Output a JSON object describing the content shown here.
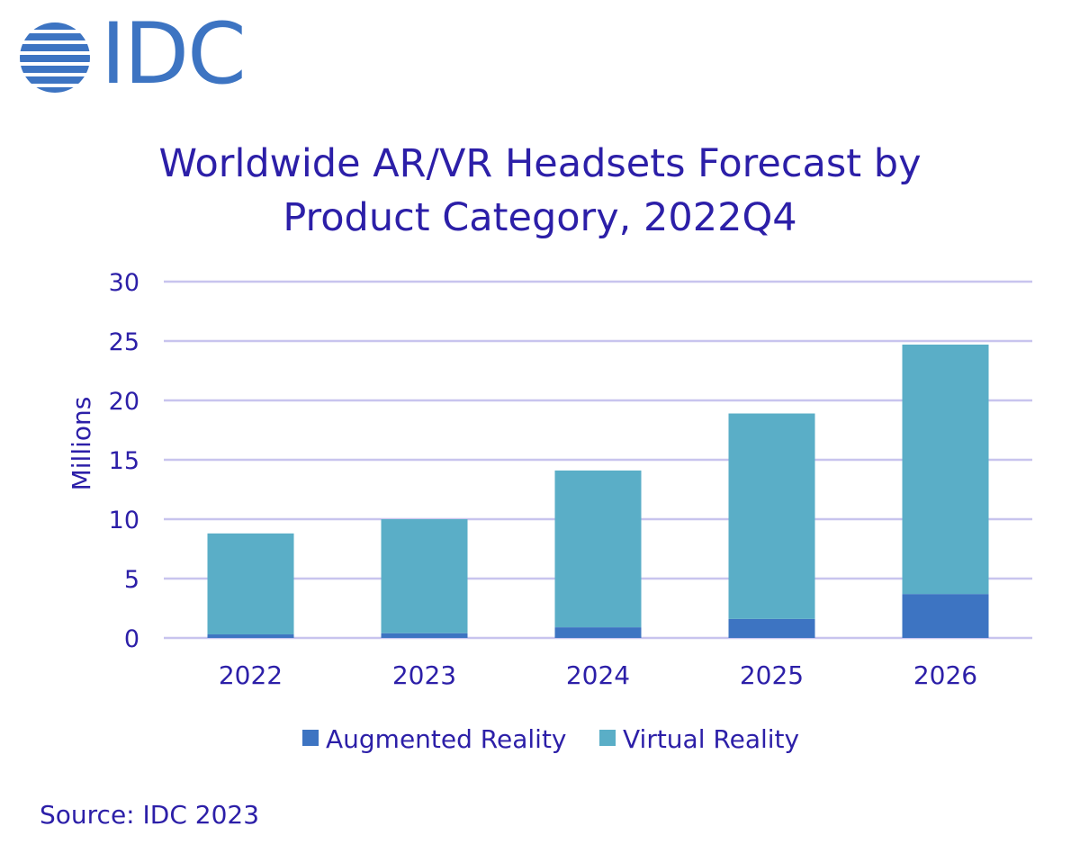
{
  "logo": {
    "text": "IDC",
    "color": "#3d74c2"
  },
  "colors": {
    "text": "#2c1fa8",
    "grid": "#c8c4ee",
    "axis": "#c8c4ee",
    "augmented_reality": "#3d74c2",
    "virtual_reality": "#5aaec7"
  },
  "source_note": "Source: IDC 2023",
  "chart_data": {
    "type": "bar",
    "stacked": true,
    "title_lines": [
      "Worldwide AR/VR Headsets Forecast by",
      "Product Category, 2022Q4"
    ],
    "title": "Worldwide AR/VR Headsets Forecast by Product Category, 2022Q4",
    "xlabel": "",
    "ylabel": "Millions",
    "ylim": [
      0,
      30
    ],
    "yticks": [
      0,
      5,
      10,
      15,
      20,
      25,
      30
    ],
    "grid": true,
    "legend_position": "bottom",
    "categories": [
      "2022",
      "2023",
      "2024",
      "2025",
      "2026"
    ],
    "series": [
      {
        "name": "Augmented Reality",
        "color": "#3d74c2",
        "values": [
          0.3,
          0.4,
          0.9,
          1.6,
          3.7
        ]
      },
      {
        "name": "Virtual Reality",
        "color": "#5aaec7",
        "values": [
          8.5,
          9.6,
          13.2,
          17.3,
          21.0
        ]
      }
    ]
  }
}
